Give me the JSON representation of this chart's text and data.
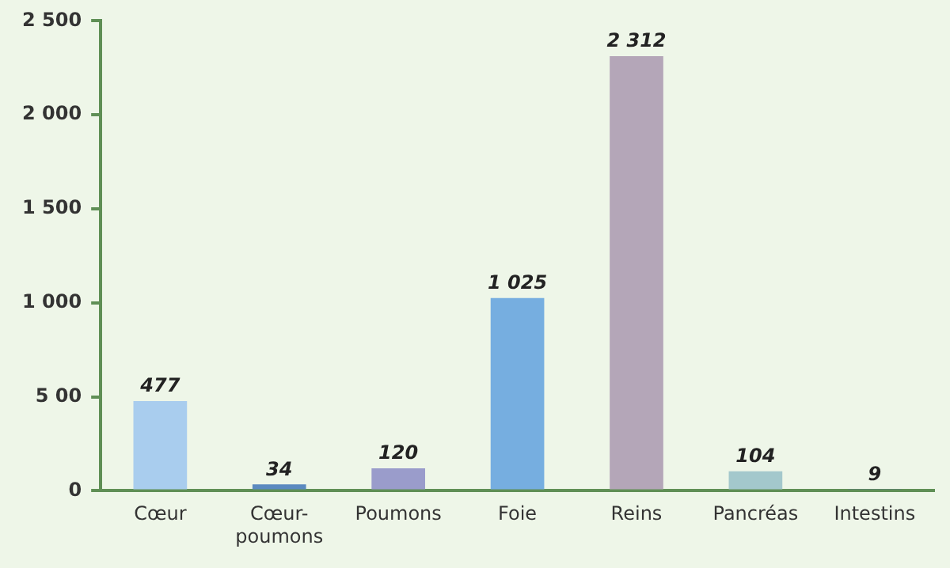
{
  "chart_data": {
    "type": "bar",
    "categories": [
      "Cœur",
      "Cœur-poumons",
      "Poumons",
      "Foie",
      "Reins",
      "Pancréas",
      "Intestins"
    ],
    "values": [
      477,
      34,
      120,
      1025,
      2312,
      104,
      9
    ],
    "colors": [
      "#a9cdee",
      "#5b8ac0",
      "#9a9ccb",
      "#76aee0",
      "#b4a6b8",
      "#a3c8cc",
      "#5a66a8"
    ],
    "value_labels": [
      "477",
      "34",
      "120",
      "1 025",
      "2 312",
      "104",
      "9"
    ],
    "ylim": [
      0,
      2500
    ],
    "yticks": [
      0,
      {
        "value": 500,
        "label": "5 00"
      },
      {
        "value": 1000,
        "label": "1 000"
      },
      {
        "value": 1500,
        "label": "1 500"
      },
      {
        "value": 2000,
        "label": "2 000"
      },
      {
        "value": 2500,
        "label": "2 500"
      }
    ],
    "grid": false,
    "legend": false
  }
}
